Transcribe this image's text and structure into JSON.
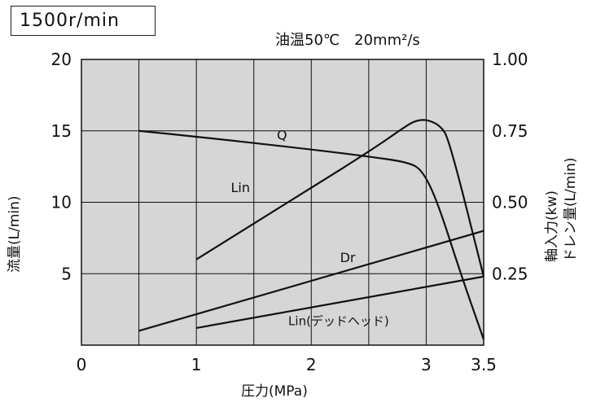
{
  "header": {
    "speed": "1500r/min",
    "oil_temp": "油温50℃",
    "viscosity": "20mm²/s"
  },
  "chart_data": {
    "type": "line",
    "title": "1500r/min",
    "subtitle": "油温50℃ 20mm²/s",
    "xlabel": "圧力(MPa)",
    "ylabel_left": "流量(L/min)",
    "ylabel_right_1": "軸入力(kw)",
    "ylabel_right_2": "ドレン量(L/min)",
    "xlim": [
      0,
      3.5
    ],
    "ylim_left": [
      0,
      20
    ],
    "ylim_right": [
      0,
      1.0
    ],
    "x_tick_labels": [
      "0",
      "1",
      "2",
      "3",
      "3.5"
    ],
    "x_tick_values": [
      0,
      1,
      2,
      3,
      3.5
    ],
    "y_left_tick_labels": [
      "5",
      "10",
      "15",
      "20"
    ],
    "y_left_tick_values": [
      5,
      10,
      15,
      20
    ],
    "y_right_tick_labels": [
      "0.25",
      "0.50",
      "0.75",
      "1.00"
    ],
    "y_right_tick_values": [
      0.25,
      0.5,
      0.75,
      1.0
    ],
    "grid": true,
    "series": [
      {
        "name": "Q",
        "axis": "left",
        "points": [
          [
            0.5,
            15.0
          ],
          [
            1.0,
            14.6
          ],
          [
            2.0,
            13.7
          ],
          [
            2.5,
            13.2
          ],
          [
            2.85,
            12.8
          ],
          [
            2.97,
            12.2
          ],
          [
            3.1,
            10.0
          ],
          [
            3.3,
            5.0
          ],
          [
            3.5,
            0.4
          ]
        ]
      },
      {
        "name": "Lin",
        "axis": "right",
        "points": [
          [
            1.0,
            0.3
          ],
          [
            2.0,
            0.55
          ],
          [
            2.55,
            0.69
          ],
          [
            2.8,
            0.76
          ],
          [
            2.9,
            0.785
          ],
          [
            3.0,
            0.79
          ],
          [
            3.12,
            0.77
          ],
          [
            3.2,
            0.72
          ],
          [
            3.5,
            0.24
          ]
        ]
      },
      {
        "name": "Dr",
        "axis": "left",
        "points": [
          [
            0.5,
            1.0
          ],
          [
            3.5,
            8.0
          ]
        ]
      },
      {
        "name": "Lin(デッドヘッド)",
        "axis": "right",
        "points": [
          [
            1.0,
            0.06
          ],
          [
            3.5,
            0.24
          ]
        ]
      }
    ],
    "curve_labels": [
      {
        "text": "Q",
        "x": 1.7,
        "y": 14.4
      },
      {
        "text": "Lin",
        "x": 1.3,
        "y": 10.7
      },
      {
        "text": "Dr",
        "x": 2.25,
        "y": 5.8
      },
      {
        "text": "Lin(デッドヘッド)",
        "x": 1.8,
        "y": 1.4
      }
    ]
  }
}
